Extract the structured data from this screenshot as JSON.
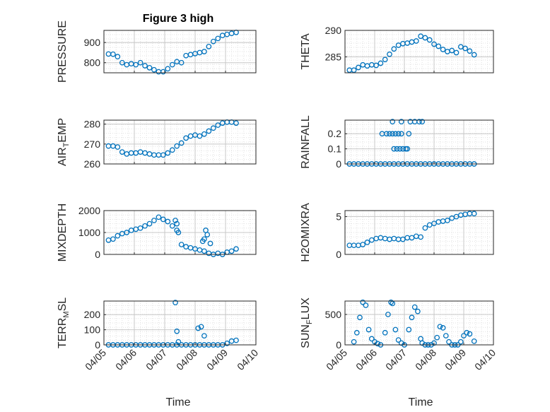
{
  "figure": {
    "title": "Figure 3 high",
    "xlabel": "Time",
    "x_ticks": [
      "04/05",
      "04/06",
      "04/07",
      "04/08",
      "04/09",
      "04/10"
    ],
    "colors": {
      "marker": "#0072BD",
      "axis": "#262626",
      "grid": "#c8c8c8",
      "minor_grid": "#e2e2e2"
    }
  },
  "chart_data": [
    {
      "type": "scatter",
      "ylabel": "PRESSURE",
      "ylim": [
        750,
        960
      ],
      "yticks": [
        800,
        900
      ],
      "xlim": [
        0,
        5
      ],
      "x_unit": "days since 04/05",
      "x": [
        0.15,
        0.3,
        0.45,
        0.6,
        0.75,
        0.9,
        1.05,
        1.2,
        1.35,
        1.5,
        1.65,
        1.8,
        1.95,
        2.1,
        2.25,
        2.4,
        2.55,
        2.7,
        2.85,
        3.0,
        3.15,
        3.3,
        3.45,
        3.6,
        3.75,
        3.9,
        4.05,
        4.2,
        4.35
      ],
      "y": [
        843,
        842,
        830,
        800,
        790,
        795,
        790,
        800,
        785,
        775,
        765,
        755,
        755,
        770,
        790,
        805,
        800,
        835,
        840,
        845,
        850,
        855,
        880,
        905,
        920,
        935,
        940,
        945,
        950
      ],
      "grid": true,
      "minor_grid": true
    },
    {
      "type": "scatter",
      "ylabel": "THETA",
      "ylim": [
        282,
        290
      ],
      "yticks": [
        285,
        290
      ],
      "xlim": [
        0,
        5
      ],
      "x": [
        0.15,
        0.3,
        0.45,
        0.6,
        0.75,
        0.9,
        1.05,
        1.2,
        1.35,
        1.5,
        1.65,
        1.8,
        1.95,
        2.1,
        2.25,
        2.4,
        2.55,
        2.7,
        2.85,
        3.0,
        3.15,
        3.3,
        3.45,
        3.6,
        3.75,
        3.9,
        4.05,
        4.2,
        4.35
      ],
      "y": [
        282.5,
        282.5,
        283.0,
        283.5,
        283.3,
        283.5,
        283.4,
        283.8,
        284.5,
        285.5,
        286.5,
        287.2,
        287.5,
        287.6,
        287.8,
        288.0,
        288.9,
        288.6,
        288.2,
        287.4,
        287.0,
        286.4,
        286.0,
        286.2,
        285.8,
        286.9,
        286.6,
        286.1,
        285.4
      ],
      "grid": true,
      "minor_grid": true
    },
    {
      "type": "scatter",
      "ylabel": "AIR_TEMP",
      "ylim": [
        260,
        282
      ],
      "yticks": [
        260,
        270,
        280
      ],
      "xlim": [
        0,
        5
      ],
      "x": [
        0.15,
        0.3,
        0.45,
        0.6,
        0.75,
        0.9,
        1.05,
        1.2,
        1.35,
        1.5,
        1.65,
        1.8,
        1.95,
        2.1,
        2.25,
        2.4,
        2.55,
        2.7,
        2.85,
        3.0,
        3.15,
        3.3,
        3.45,
        3.6,
        3.75,
        3.9,
        4.05,
        4.2,
        4.35
      ],
      "y": [
        269,
        269,
        268.5,
        266,
        265,
        265.5,
        265.5,
        266,
        265.5,
        265,
        264.5,
        264.5,
        264.5,
        265.5,
        267,
        269,
        270.5,
        273,
        274,
        274.5,
        274,
        275,
        276.5,
        278,
        279.5,
        280.5,
        281,
        281,
        280.5
      ],
      "grid": true,
      "minor_grid": true
    },
    {
      "type": "scatter",
      "ylabel": "RAINFALL",
      "ylim": [
        0,
        0.29
      ],
      "yticks": [
        0,
        0.1,
        0.2
      ],
      "xlim": [
        0,
        5
      ],
      "x": [
        0.15,
        0.3,
        0.45,
        0.6,
        0.75,
        0.9,
        1.05,
        1.2,
        1.35,
        1.5,
        1.65,
        1.8,
        1.95,
        2.1,
        2.25,
        2.4,
        2.55,
        2.7,
        2.85,
        3.0,
        3.15,
        3.3,
        3.45,
        3.6,
        3.75,
        3.9,
        4.05,
        4.2,
        4.35,
        1.25,
        1.4,
        1.5,
        1.6,
        1.7,
        1.8,
        1.9,
        2.15,
        1.65,
        1.75,
        1.85,
        1.95,
        2.05,
        2.1,
        1.6,
        1.9,
        2.2,
        2.35,
        2.5,
        2.6
      ],
      "y": [
        0,
        0,
        0,
        0,
        0,
        0,
        0,
        0,
        0,
        0,
        0,
        0,
        0,
        0,
        0,
        0,
        0,
        0,
        0,
        0,
        0,
        0,
        0,
        0,
        0,
        0,
        0,
        0,
        0,
        0.2,
        0.2,
        0.2,
        0.2,
        0.2,
        0.2,
        0.2,
        0.2,
        0.1,
        0.1,
        0.1,
        0.1,
        0.1,
        0.1,
        0.28,
        0.28,
        0.28,
        0.28,
        0.28,
        0.28
      ],
      "grid": true,
      "minor_grid": true
    },
    {
      "type": "scatter",
      "ylabel": "MIXDEPTH",
      "ylim": [
        0,
        2000
      ],
      "yticks": [
        0,
        1000,
        2000
      ],
      "xlim": [
        0,
        5
      ],
      "x": [
        0.15,
        0.3,
        0.45,
        0.6,
        0.75,
        0.9,
        1.05,
        1.2,
        1.35,
        1.5,
        1.65,
        1.8,
        1.95,
        2.1,
        2.25,
        2.4,
        2.55,
        2.7,
        2.85,
        3.0,
        3.15,
        3.3,
        3.45,
        3.6,
        3.75,
        3.9,
        4.05,
        4.2,
        4.35,
        2.35,
        2.4,
        2.45,
        3.35,
        3.4,
        3.5,
        3.25,
        3.3
      ],
      "y": [
        650,
        700,
        850,
        950,
        1000,
        1100,
        1150,
        1200,
        1300,
        1400,
        1550,
        1700,
        1600,
        1500,
        1300,
        1100,
        450,
        350,
        300,
        250,
        200,
        150,
        50,
        0,
        50,
        0,
        100,
        150,
        250,
        1550,
        1400,
        1000,
        1100,
        900,
        500,
        600,
        700
      ],
      "grid": true,
      "minor_grid": true
    },
    {
      "type": "scatter",
      "ylabel": "H2OMIXRA",
      "ylim": [
        0,
        5.8
      ],
      "yticks": [
        0,
        5
      ],
      "xlim": [
        0,
        5
      ],
      "x": [
        0.15,
        0.3,
        0.45,
        0.6,
        0.75,
        0.9,
        1.05,
        1.2,
        1.35,
        1.5,
        1.65,
        1.8,
        1.95,
        2.1,
        2.25,
        2.4,
        2.55,
        2.7,
        2.85,
        3.0,
        3.15,
        3.3,
        3.45,
        3.6,
        3.75,
        3.9,
        4.05,
        4.2,
        4.35
      ],
      "y": [
        1.2,
        1.2,
        1.2,
        1.3,
        1.6,
        1.9,
        2.1,
        2.2,
        2.1,
        2.0,
        2.1,
        2.0,
        2.0,
        2.2,
        2.2,
        2.4,
        2.3,
        3.5,
        3.9,
        4.1,
        4.3,
        4.4,
        4.5,
        4.8,
        5.0,
        5.2,
        5.3,
        5.4,
        5.4
      ],
      "grid": true,
      "minor_grid": true
    },
    {
      "type": "scatter",
      "ylabel": "TERR_MSL",
      "ylim": [
        0,
        290
      ],
      "yticks": [
        0,
        100,
        200
      ],
      "xlim": [
        0,
        5
      ],
      "x": [
        0.15,
        0.3,
        0.45,
        0.6,
        0.75,
        0.9,
        1.05,
        1.2,
        1.35,
        1.5,
        1.65,
        1.8,
        1.95,
        2.1,
        2.25,
        2.4,
        2.55,
        2.7,
        2.85,
        3.0,
        3.15,
        3.3,
        3.45,
        3.6,
        3.75,
        3.9,
        4.05,
        4.2,
        4.35,
        2.35,
        2.4,
        2.45,
        3.1,
        3.2,
        3.3
      ],
      "y": [
        0,
        0,
        0,
        0,
        0,
        0,
        0,
        0,
        0,
        0,
        0,
        0,
        0,
        0,
        0,
        0,
        0,
        0,
        0,
        0,
        0,
        0,
        0,
        0,
        0,
        0,
        10,
        25,
        30,
        280,
        90,
        20,
        110,
        120,
        60
      ],
      "grid": true,
      "minor_grid": true
    },
    {
      "type": "scatter",
      "ylabel": "SUN_FLUX",
      "ylim": [
        0,
        720
      ],
      "yticks": [
        0,
        500
      ],
      "xlim": [
        0,
        5
      ],
      "x": [
        0.3,
        0.4,
        0.5,
        0.6,
        0.7,
        0.8,
        0.9,
        1.0,
        1.1,
        1.2,
        1.35,
        1.45,
        1.55,
        1.6,
        1.7,
        1.8,
        1.9,
        2.0,
        2.15,
        2.25,
        2.35,
        2.45,
        2.55,
        2.6,
        2.7,
        2.8,
        2.9,
        3.0,
        3.1,
        3.2,
        3.3,
        3.4,
        3.5,
        3.6,
        3.7,
        3.8,
        3.9,
        4.0,
        4.1,
        4.2,
        4.35
      ],
      "y": [
        50,
        200,
        450,
        700,
        650,
        250,
        100,
        50,
        20,
        0,
        200,
        500,
        700,
        680,
        250,
        80,
        30,
        0,
        250,
        450,
        620,
        550,
        100,
        30,
        0,
        0,
        0,
        30,
        120,
        300,
        280,
        150,
        50,
        0,
        0,
        0,
        50,
        150,
        200,
        180,
        60
      ],
      "grid": true,
      "minor_grid": true
    }
  ]
}
